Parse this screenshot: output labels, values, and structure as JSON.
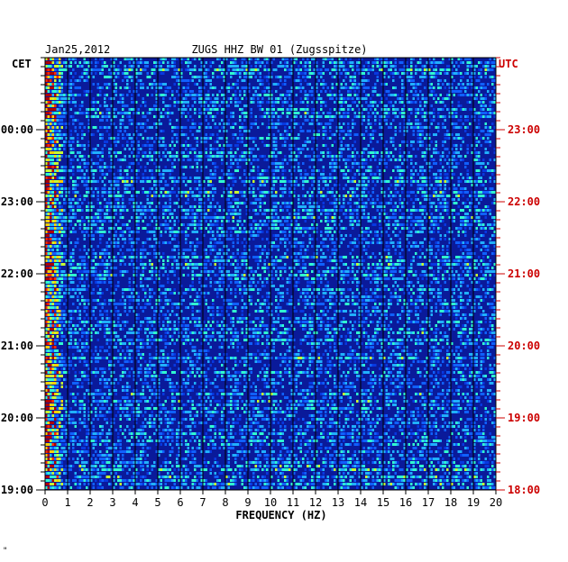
{
  "chart_data": {
    "type": "heatmap",
    "date": "Jan25,2012",
    "station_title": "ZUGS HHZ BW 01 (Zugsspitze)",
    "left_timezone": "CET",
    "right_timezone": "UTC",
    "xlabel": "FREQUENCY (HZ)",
    "xlim": [
      0,
      20
    ],
    "x_ticks": [
      "0",
      "1",
      "2",
      "3",
      "4",
      "5",
      "6",
      "7",
      "8",
      "9",
      "10",
      "11",
      "12",
      "13",
      "14",
      "15",
      "16",
      "17",
      "18",
      "19",
      "20"
    ],
    "left_time_labels": [
      "00:00",
      "23:00",
      "22:00",
      "21:00",
      "20:00",
      "19:00"
    ],
    "right_time_labels": [
      "23:00",
      "22:00",
      "21:00",
      "20:00",
      "19:00",
      "18:00"
    ],
    "grid": true,
    "colors": {
      "background": "#0a1a9a",
      "grid": "#000000",
      "utc_label": "#cc0000",
      "cet_label": "#000000"
    }
  },
  "footer_mark": "\""
}
